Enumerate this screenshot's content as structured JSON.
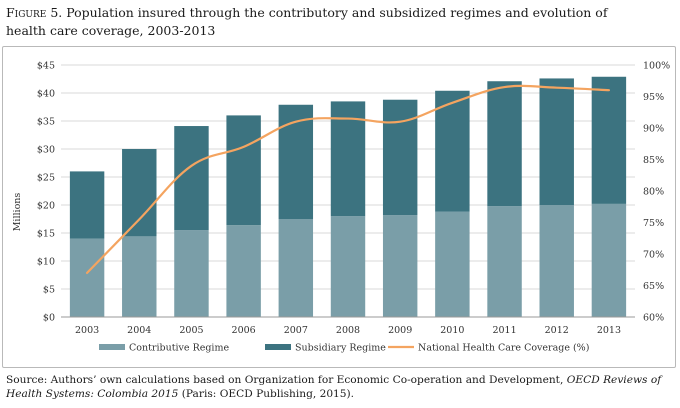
{
  "title": {
    "figure_label": "Figure 5.",
    "text": "Population insured through the contributory and subsidized regimes and evolution of health care coverage, 2003-2013"
  },
  "source": {
    "prefix": "Source: Authors’ own calculations based on Organization for Economic Co-operation and Development, ",
    "italic": "OECD Reviews of Health Systems: Colombia 2015",
    "suffix": " (Paris: OECD Publishing, 2015)."
  },
  "chart_data": {
    "type": "bar",
    "stacked": true,
    "categories": [
      "2003",
      "2004",
      "2005",
      "2006",
      "2007",
      "2008",
      "2009",
      "2010",
      "2011",
      "2012",
      "2013"
    ],
    "ylabel": "Millions",
    "ylim": [
      0,
      45
    ],
    "y_ticks": [
      "$0",
      "$5",
      "$10",
      "$15",
      "$20",
      "$25",
      "$30",
      "$35",
      "$40",
      "$45"
    ],
    "y2lim": [
      60,
      100
    ],
    "y2_ticks": [
      "60%",
      "65%",
      "70%",
      "75%",
      "80%",
      "85%",
      "90%",
      "95%",
      "100%"
    ],
    "grid": true,
    "legend_position": "bottom",
    "series": [
      {
        "name": "Contributive Regime",
        "kind": "bar",
        "color": "#7a9ea8",
        "values": [
          14.0,
          14.4,
          15.5,
          16.4,
          17.5,
          18.0,
          18.2,
          18.8,
          19.8,
          20.0,
          20.2
        ]
      },
      {
        "name": "Subsidiary Regime",
        "kind": "bar",
        "color": "#3c7380",
        "values": [
          12.0,
          15.6,
          18.6,
          19.6,
          20.4,
          20.5,
          20.6,
          21.6,
          22.3,
          22.6,
          22.7
        ]
      },
      {
        "name": "National Health Care Coverage (%)",
        "kind": "line",
        "axis": "right",
        "color": "#f4a460",
        "values": [
          67.0,
          75.5,
          84.0,
          87.0,
          91.0,
          91.5,
          91.0,
          94.0,
          96.5,
          96.4,
          96.0
        ]
      }
    ]
  }
}
